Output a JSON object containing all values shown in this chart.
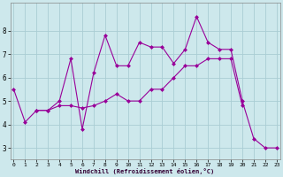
{
  "xlabel": "Windchill (Refroidissement éolien,°C)",
  "bg_color": "#cde8ec",
  "line_color": "#990099",
  "grid_color": "#aacdd4",
  "line1_x": [
    0,
    1,
    2,
    3,
    4,
    5,
    6,
    7,
    8,
    9,
    10,
    11,
    12,
    13,
    14,
    15,
    16,
    17,
    18,
    19,
    20,
    21,
    22,
    23
  ],
  "line1_y": [
    5.5,
    4.1,
    4.6,
    4.6,
    5.0,
    6.8,
    3.8,
    6.2,
    7.8,
    6.5,
    6.5,
    7.5,
    7.3,
    7.3,
    6.6,
    7.2,
    8.6,
    7.5,
    7.2,
    7.2,
    5.0,
    3.4,
    3.0,
    3.0
  ],
  "line2_x": [
    2,
    3,
    4,
    5,
    6,
    7,
    8,
    9,
    10,
    11,
    12,
    13,
    14,
    15,
    16,
    17,
    18,
    19,
    20
  ],
  "line2_y": [
    4.6,
    4.6,
    4.8,
    4.8,
    4.7,
    4.8,
    5.0,
    5.3,
    5.0,
    5.0,
    5.5,
    5.5,
    6.0,
    6.5,
    6.5,
    6.8,
    6.8,
    6.8,
    4.8
  ],
  "ylim": [
    2.5,
    9.2
  ],
  "xlim": [
    -0.3,
    23.3
  ],
  "yticks": [
    3,
    4,
    5,
    6,
    7,
    8
  ],
  "xticks": [
    0,
    1,
    2,
    3,
    4,
    5,
    6,
    7,
    8,
    9,
    10,
    11,
    12,
    13,
    14,
    15,
    16,
    17,
    18,
    19,
    20,
    21,
    22,
    23
  ]
}
